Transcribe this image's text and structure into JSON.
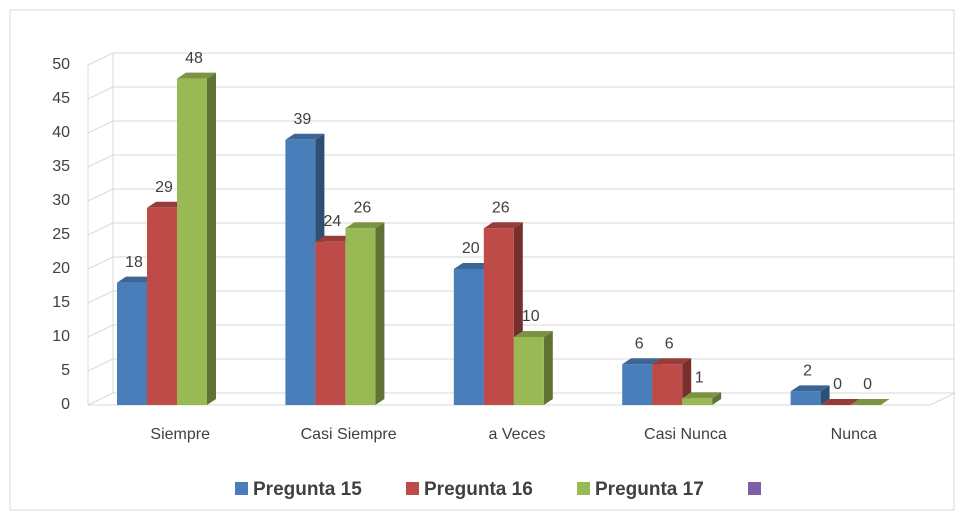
{
  "chart_data": {
    "type": "bar3d",
    "categories": [
      "Siempre",
      "Casi Siempre",
      "a Veces",
      "Casi Nunca",
      "Nunca"
    ],
    "series": [
      {
        "name": "Pregunta 15",
        "color": "#4a7ebb",
        "values": [
          18,
          39,
          20,
          6,
          2
        ]
      },
      {
        "name": "Pregunta 16",
        "color": "#be4b48",
        "values": [
          29,
          24,
          26,
          6,
          0
        ]
      },
      {
        "name": "Pregunta 17",
        "color": "#98b954",
        "values": [
          48,
          26,
          10,
          1,
          0
        ]
      }
    ],
    "ylim": [
      0,
      50
    ],
    "yticks": [
      0,
      5,
      10,
      15,
      20,
      25,
      30,
      35,
      40,
      45,
      50
    ],
    "grid": true,
    "legend": "bottom"
  }
}
